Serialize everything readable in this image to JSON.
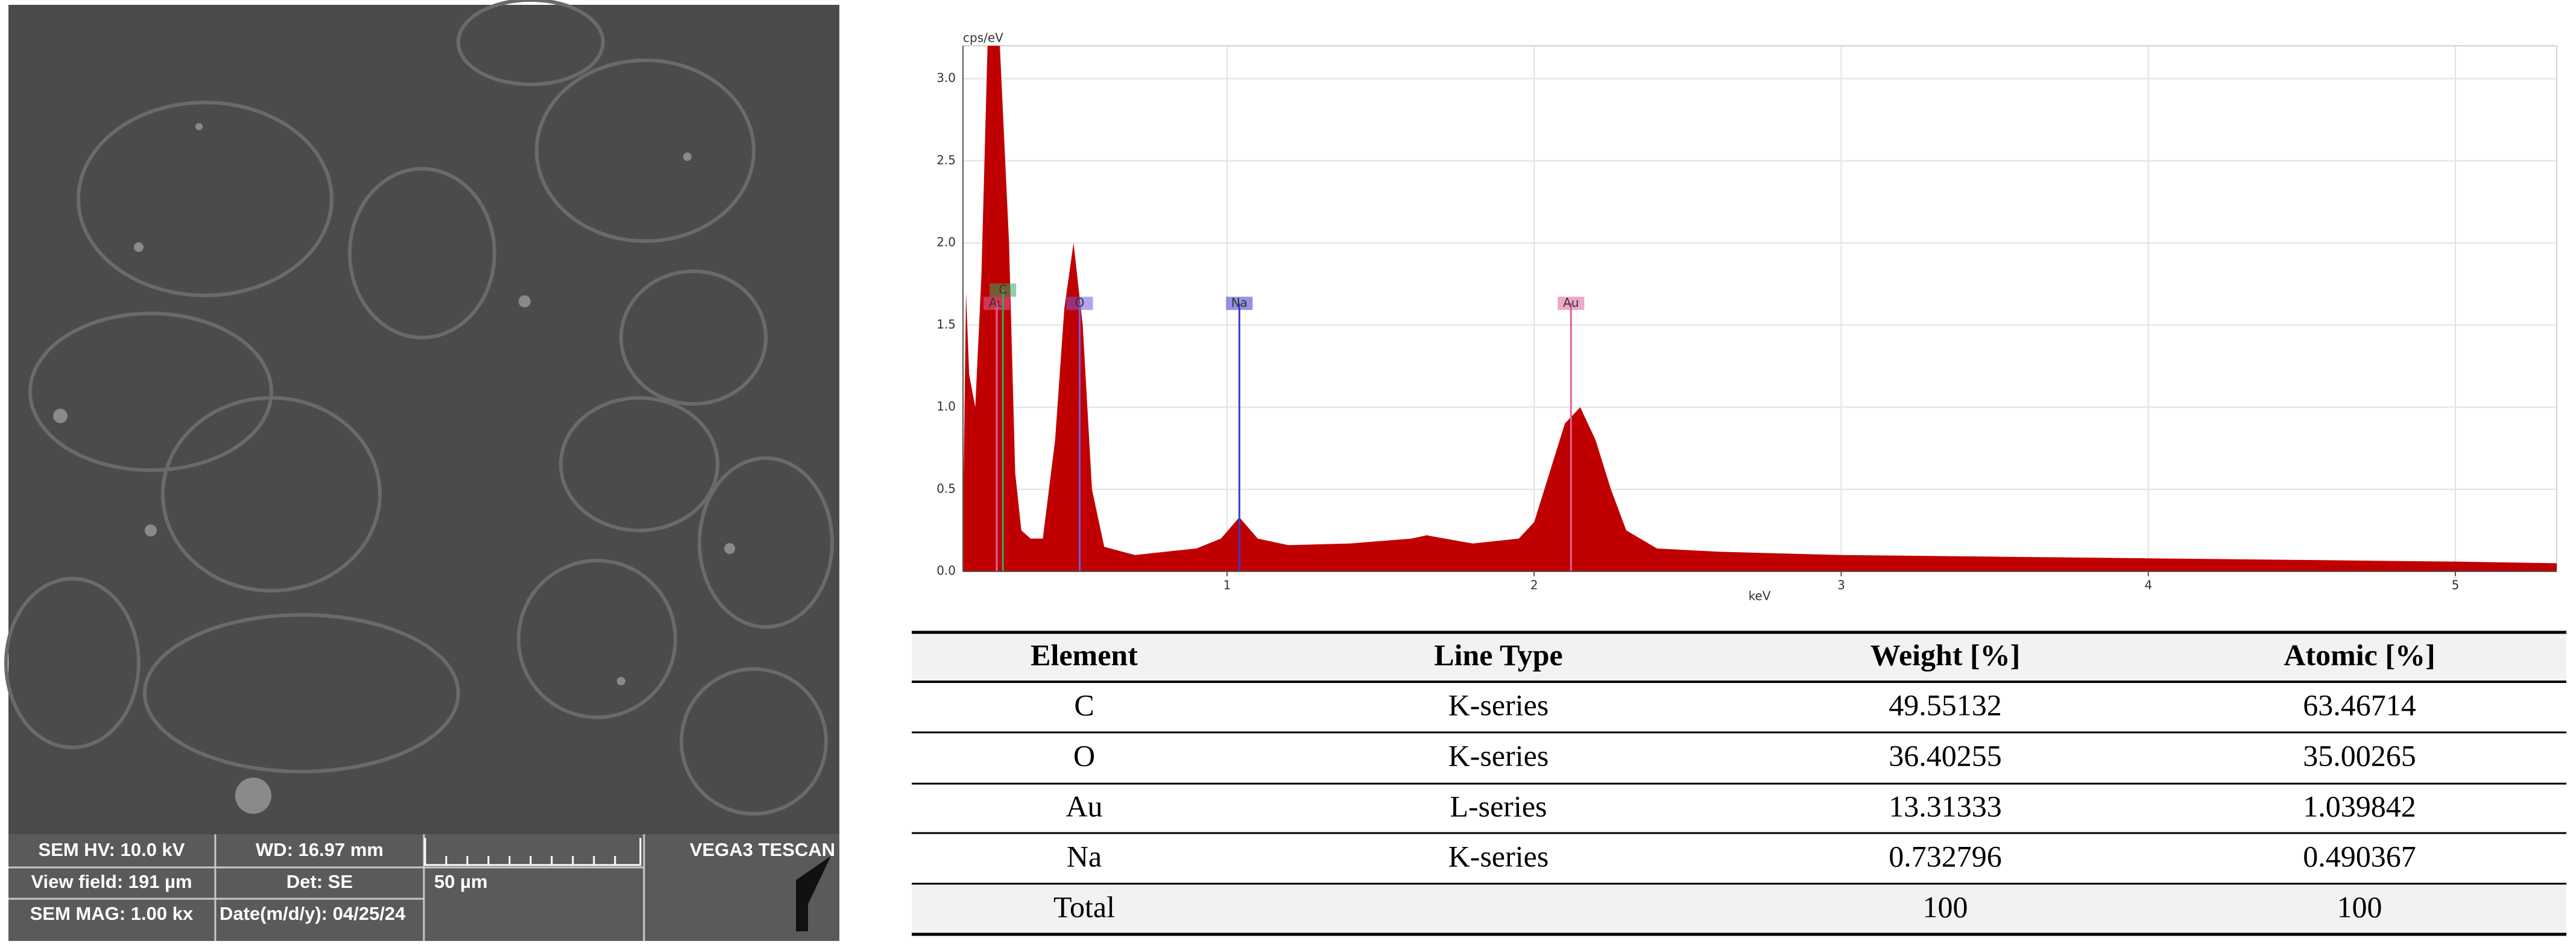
{
  "sem": {
    "hv": "SEM HV: 10.0 kV",
    "wd": "WD: 16.97 mm",
    "brand": "VEGA3 TESCAN",
    "view_field": "View field: 191 µm",
    "detector": "Det: SE",
    "scale": "50 µm",
    "mag": "SEM MAG: 1.00 kx",
    "date": "Date(m/d/y): 04/25/24"
  },
  "chart_data": {
    "type": "area",
    "ylabel": "cps/eV",
    "xlabel": "keV",
    "xlim": [
      0.14,
      5.33
    ],
    "ylim": [
      0,
      3.2
    ],
    "xticks": [
      1,
      2,
      3,
      4,
      5
    ],
    "yticks": [
      {
        "value": 0,
        "label": "0.0"
      },
      0.5,
      {
        "value": 1,
        "label": "1.0"
      },
      1.5,
      {
        "value": 2,
        "label": "2.0"
      },
      2.5,
      {
        "value": 3,
        "label": "3.0"
      }
    ],
    "grid": true,
    "series": [
      {
        "color": "#c00000",
        "x": [
          0.14,
          0.15,
          0.16,
          0.18,
          0.2,
          0.22,
          0.26,
          0.29,
          0.31,
          0.33,
          0.36,
          0.4,
          0.44,
          0.47,
          0.5,
          0.53,
          0.56,
          0.6,
          0.7,
          0.8,
          0.9,
          0.98,
          1.04,
          1.1,
          1.2,
          1.4,
          1.6,
          1.65,
          1.8,
          1.95,
          2.0,
          2.05,
          2.1,
          2.15,
          2.2,
          2.25,
          2.3,
          2.4,
          2.6,
          3.0,
          3.5,
          4.0,
          4.5,
          5.0,
          5.33
        ],
        "values": [
          0.3,
          1.7,
          1.2,
          1.0,
          1.8,
          3.2,
          3.2,
          2.0,
          0.6,
          0.25,
          0.2,
          0.2,
          0.8,
          1.6,
          2.0,
          1.5,
          0.5,
          0.15,
          0.1,
          0.12,
          0.14,
          0.2,
          0.33,
          0.2,
          0.16,
          0.17,
          0.2,
          0.22,
          0.17,
          0.2,
          0.3,
          0.6,
          0.9,
          1.0,
          0.8,
          0.5,
          0.25,
          0.14,
          0.12,
          0.1,
          0.09,
          0.08,
          0.07,
          0.06,
          0.05
        ]
      }
    ],
    "element_lines": [
      {
        "label": "Au",
        "x": 0.25,
        "color": "#e0609a"
      },
      {
        "label": "C",
        "x": 0.27,
        "color": "#3aa860"
      },
      {
        "label": "O",
        "x": 0.52,
        "color": "#7a5ad8"
      },
      {
        "label": "Na",
        "x": 1.04,
        "color": "#3a3ac8"
      },
      {
        "label": "Au",
        "x": 2.12,
        "color": "#e0609a"
      }
    ]
  },
  "table": {
    "header": [
      "Element",
      "Line Type",
      "Weight [%]",
      "Atomic [%]"
    ],
    "rows": [
      [
        "C",
        "K-series",
        49.55132,
        63.46714
      ],
      [
        "O",
        "K-series",
        36.40255,
        35.00265
      ],
      [
        "Au",
        "L-series",
        13.31333,
        1.039842
      ],
      [
        "Na",
        "K-series",
        0.732796,
        0.490367
      ]
    ],
    "total": {
      "label": "Total",
      "weight": 100,
      "atomic": 100
    }
  }
}
